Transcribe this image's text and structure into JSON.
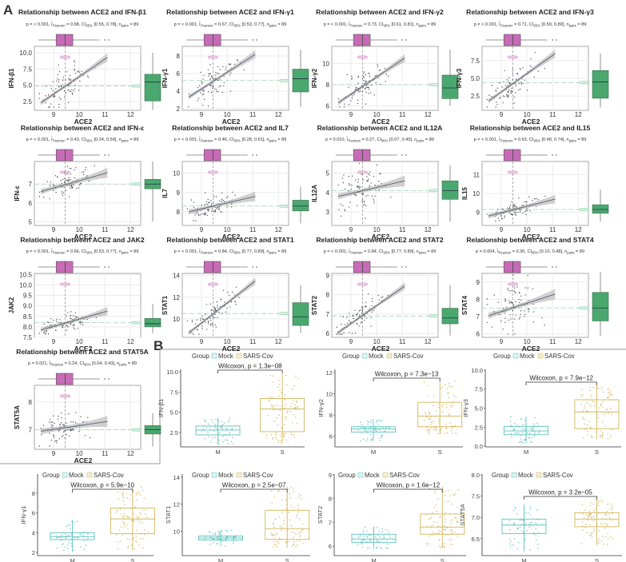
{
  "panel_labels": {
    "a": "A",
    "b": "B"
  },
  "stats_labels": {
    "pearson": "Pearson",
    "ci": "95%",
    "pairs": "pairs"
  },
  "legend": {
    "title": "Group",
    "mock": "Mock",
    "sars": "SARS-Cov"
  },
  "colors": {
    "ace2_box": "#c76bb7",
    "gene_box": "#4aa86f",
    "mock": "#5cc3bd",
    "sars": "#d2b55a",
    "fit_line": "#5a6072",
    "ci_band": "#b9b9b9"
  },
  "chart_data": [
    {
      "type": "scatter",
      "title": "Relationship between ACE2 and IFN-β1",
      "xlabel": "ACE2",
      "ylabel": "IFN-β1",
      "p": "< 0.001",
      "r": "0.68",
      "ci": "[0.55, 0.78]",
      "n": "89",
      "r_value": 0.68,
      "xlim": [
        8.25,
        12.4
      ],
      "xticks": [
        "9",
        "10",
        "11",
        "12"
      ],
      "ylim": [
        1.15,
        11
      ],
      "yticks": [
        "2.5",
        "5.0",
        "7.5",
        "10.0"
      ],
      "fit": [
        [
          8.5,
          2.3
        ],
        [
          11.1,
          9.3
        ]
      ],
      "x_box": [
        8.4,
        9.1,
        9.45,
        9.75,
        10.8
      ],
      "y_box": [
        1.2,
        2.6,
        5.5,
        6.7,
        10
      ],
      "y_mean": 4.9
    },
    {
      "type": "scatter",
      "title": "Relationship between ACE2 and IFN-γ1",
      "xlabel": "ACE2",
      "ylabel": "IFN-γ1",
      "p": "< 0.001",
      "r": "0.67",
      "ci": "[0.53, 0.77]",
      "n": "89",
      "r_value": 0.67,
      "xlim": [
        8.25,
        12.4
      ],
      "xticks": [
        "9",
        "10",
        "11",
        "12"
      ],
      "ylim": [
        1.8,
        9.1
      ],
      "yticks": [
        "2",
        "4",
        "6",
        "8"
      ],
      "fit": [
        [
          8.5,
          3.3
        ],
        [
          11.1,
          8.2
        ]
      ],
      "x_box": [
        8.4,
        9.1,
        9.45,
        9.75,
        10.8
      ],
      "y_box": [
        2.2,
        3.9,
        5.4,
        6.5,
        8.7
      ],
      "y_mean": 5.2
    },
    {
      "type": "scatter",
      "title": "Relationship between ACE2 and IFN-γ2",
      "xlabel": "ACE2",
      "ylabel": "IFN-γ2",
      "p": "< 0.001",
      "r": "0.73",
      "ci": "[0.61, 0.81]",
      "n": "89",
      "r_value": 0.73,
      "xlim": [
        8.25,
        12.4
      ],
      "xticks": [
        "9",
        "10",
        "11",
        "12"
      ],
      "ylim": [
        5.6,
        11.6
      ],
      "yticks": [
        "6",
        "8",
        "10"
      ],
      "fit": [
        [
          8.5,
          6.3
        ],
        [
          11.1,
          10.5
        ]
      ],
      "x_box": [
        8.4,
        9.1,
        9.45,
        9.75,
        10.8
      ],
      "y_box": [
        6,
        6.7,
        7.7,
        8.9,
        11.3
      ],
      "y_mean": 8
    },
    {
      "type": "scatter",
      "title": "Relationship between ACE2 and IFN-γ3",
      "xlabel": "ACE2",
      "ylabel": "IFN-γ3",
      "p": "< 0.001",
      "r": "0.71",
      "ci": "[0.59, 0.80]",
      "n": "89",
      "r_value": 0.71,
      "xlim": [
        8.25,
        12.4
      ],
      "xticks": [
        "9",
        "10",
        "11",
        "12"
      ],
      "ylim": [
        0.5,
        9.5
      ],
      "yticks": [
        "2.5",
        "5.0",
        "7.5"
      ],
      "fit": [
        [
          8.5,
          1.8
        ],
        [
          11.1,
          8.5
        ]
      ],
      "x_box": [
        8.4,
        9.1,
        9.45,
        9.75,
        10.8
      ],
      "y_box": [
        0.9,
        2.2,
        4.5,
        6.1,
        8.5
      ],
      "y_mean": 4.4
    },
    {
      "type": "scatter",
      "title": "Relationship between ACE2 and IFN-ε",
      "xlabel": "ACE2",
      "ylabel": "IFN-ε",
      "p": "< 0.001",
      "r": "0.43",
      "ci": "[0.24, 0.59]",
      "n": "89",
      "r_value": 0.43,
      "xlim": [
        8.25,
        12.4
      ],
      "xticks": [
        "9",
        "10",
        "11",
        "12"
      ],
      "ylim": [
        4.8,
        8.2
      ],
      "yticks": [
        "5",
        "6",
        "7"
      ],
      "fit": [
        [
          8.5,
          6.6
        ],
        [
          11.1,
          7.6
        ]
      ],
      "x_box": [
        8.4,
        9.1,
        9.45,
        9.75,
        10.8
      ],
      "y_box": [
        5,
        6.75,
        7,
        7.25,
        8.2
      ],
      "y_mean": 7
    },
    {
      "type": "scatter",
      "title": "Relationship between ACE2 and IL7",
      "xlabel": "ACE2",
      "ylabel": "IL7",
      "p": "< 0.001",
      "r": "0.46",
      "ci": "[0.28, 0.61]",
      "n": "89",
      "r_value": 0.46,
      "xlim": [
        8.25,
        12.4
      ],
      "xticks": [
        "9",
        "10",
        "11",
        "12"
      ],
      "ylim": [
        7.3,
        10.6
      ],
      "yticks": [
        "8",
        "9",
        "10"
      ],
      "fit": [
        [
          8.5,
          8.0
        ],
        [
          11.1,
          8.8
        ]
      ],
      "x_box": [
        8.4,
        9.1,
        9.45,
        9.75,
        10.8
      ],
      "y_box": [
        7.4,
        8.05,
        8.3,
        8.6,
        9.3
      ],
      "y_mean": 8.3
    },
    {
      "type": "scatter",
      "title": "Relationship between ACE2 and IL12A",
      "xlabel": "ACE2",
      "ylabel": "IL12A",
      "p": "0.010",
      "r": "0.27",
      "ci": "[0.07, 0.45]",
      "n": "89",
      "r_value": 0.27,
      "xlim": [
        8.25,
        12.4
      ],
      "xticks": [
        "9",
        "10",
        "11",
        "12"
      ],
      "ylim": [
        2.3,
        5.6
      ],
      "yticks": [
        "3",
        "4",
        "5"
      ],
      "fit": [
        [
          8.5,
          3.8
        ],
        [
          11.1,
          4.6
        ]
      ],
      "x_box": [
        8.4,
        9.1,
        9.45,
        9.75,
        10.8
      ],
      "y_box": [
        2.5,
        3.65,
        4.1,
        4.6,
        5.4
      ],
      "y_mean": 4.1
    },
    {
      "type": "scatter",
      "title": "Relationship between ACE2 and IL15",
      "xlabel": "ACE2",
      "ylabel": "IL15",
      "p": "< 0.001",
      "r": "0.63",
      "ci": "[0.48, 0.74]",
      "n": "89",
      "r_value": 0.63,
      "xlim": [
        8.25,
        12.4
      ],
      "xticks": [
        "9",
        "10",
        "11",
        "12"
      ],
      "ylim": [
        8.3,
        11.7
      ],
      "yticks": [
        "9",
        "10",
        "11"
      ],
      "fit": [
        [
          8.5,
          8.8
        ],
        [
          11.1,
          9.7
        ]
      ],
      "x_box": [
        8.4,
        9.1,
        9.45,
        9.75,
        10.8
      ],
      "y_box": [
        8.5,
        8.95,
        9.15,
        9.4,
        10.2
      ],
      "y_mean": 9.15
    },
    {
      "type": "scatter",
      "title": "Relationship between ACE2 and JAK2",
      "xlabel": "ACE2",
      "ylabel": "JAK2",
      "p": "< 0.001",
      "r": "0.66",
      "ci": "[0.53, 0.77]",
      "n": "89",
      "r_value": 0.66,
      "xlim": [
        8.25,
        12.4
      ],
      "xticks": [
        "9",
        "10",
        "11",
        "12"
      ],
      "ylim": [
        7.5,
        10.55
      ],
      "yticks": [
        "7.5",
        "8.0",
        "8.5",
        "9.0",
        "9.5",
        "10.0",
        "10.5"
      ],
      "fit": [
        [
          8.5,
          7.85
        ],
        [
          11.1,
          8.75
        ]
      ],
      "x_box": [
        8.4,
        9.1,
        9.45,
        9.75,
        10.8
      ],
      "y_box": [
        7.7,
        8.0,
        8.15,
        8.4,
        9.1
      ],
      "y_mean": 8.2
    },
    {
      "type": "scatter",
      "title": "Relationship between ACE2 and STAT1",
      "xlabel": "ACE2",
      "ylabel": "STAT1",
      "p": "< 0.001",
      "r": "0.84",
      "ci": "[0.77, 0.89]",
      "n": "89",
      "r_value": 0.84,
      "xlim": [
        8.25,
        12.4
      ],
      "xticks": [
        "9",
        "10",
        "11",
        "12"
      ],
      "ylim": [
        8.3,
        14.2
      ],
      "yticks": [
        "10",
        "12",
        "14"
      ],
      "fit": [
        [
          8.5,
          8.7
        ],
        [
          11.1,
          13.5
        ]
      ],
      "x_box": [
        8.4,
        9.1,
        9.45,
        9.75,
        10.8
      ],
      "y_box": [
        8.7,
        9.4,
        10.2,
        11.5,
        13.1
      ],
      "y_mean": 10.5
    },
    {
      "type": "scatter",
      "title": "Relationship between ACE2 and STAT2",
      "xlabel": "ACE2",
      "ylabel": "STAT2",
      "p": "< 0.001",
      "r": "0.84",
      "ci": "[0.77, 0.89]",
      "n": "89",
      "r_value": 0.84,
      "xlim": [
        8.25,
        12.4
      ],
      "xticks": [
        "9",
        "10",
        "11",
        "12"
      ],
      "ylim": [
        5.8,
        9.1
      ],
      "yticks": [
        "6",
        "7",
        "8",
        "9"
      ],
      "fit": [
        [
          8.5,
          6.05
        ],
        [
          11.1,
          8.45
        ]
      ],
      "x_box": [
        8.4,
        9.1,
        9.45,
        9.75,
        10.8
      ],
      "y_box": [
        5.9,
        6.5,
        6.8,
        7.3,
        8.5
      ],
      "y_mean": 6.9
    },
    {
      "type": "scatter",
      "title": "Relationship between ACE2 and STAT4",
      "xlabel": "ACE2",
      "ylabel": "STAT4",
      "p": "0.004",
      "r": "0.30",
      "ci": "[0.10, 0.48]",
      "n": "89",
      "r_value": 0.3,
      "xlim": [
        8.25,
        12.4
      ],
      "xticks": [
        "9",
        "10",
        "11",
        "12"
      ],
      "ylim": [
        5.8,
        9.5
      ],
      "yticks": [
        "6",
        "7",
        "8",
        "9"
      ],
      "fit": [
        [
          8.5,
          7.05
        ],
        [
          11.1,
          8.3
        ]
      ],
      "x_box": [
        8.4,
        9.1,
        9.45,
        9.75,
        10.8
      ],
      "y_box": [
        5.9,
        6.75,
        7.5,
        8.4,
        9.6
      ],
      "y_mean": 7.5
    },
    {
      "type": "scatter",
      "title": "Relationship between ACE2 and STAT5A",
      "xlabel": "ACE2",
      "ylabel": "STAT5A",
      "p": "0.021",
      "r": "0.24",
      "ci": "[0.04, 0.43]",
      "n": "89",
      "r_value": 0.24,
      "xlim": [
        8.25,
        12.4
      ],
      "xticks": [
        "9",
        "10",
        "11",
        "12"
      ],
      "ylim": [
        6.3,
        8.6
      ],
      "yticks": [
        "7",
        "8"
      ],
      "fit": [
        [
          8.5,
          6.95
        ],
        [
          11.1,
          7.3
        ]
      ],
      "x_box": [
        8.4,
        9.1,
        9.45,
        9.75,
        10.8
      ],
      "y_box": [
        6.4,
        6.85,
        7.0,
        7.15,
        7.6
      ],
      "y_mean": 7.0
    },
    {
      "type": "box",
      "ylabel": "IFN-β1",
      "wilcoxon": "Wilcoxon, p = 1.3e−08",
      "categories": [
        "M",
        "S"
      ],
      "ylim": [
        0.72,
        10.3
      ],
      "yticks": [
        "2.5",
        "5.0",
        "7.5",
        "10.0"
      ],
      "groups": [
        {
          "name": "Mock",
          "stats": [
            1.0,
            2.2,
            2.8,
            3.3,
            4.3
          ]
        },
        {
          "name": "SARS-Cov",
          "stats": [
            1.2,
            2.6,
            5.4,
            6.7,
            9.8
          ]
        }
      ]
    },
    {
      "type": "box",
      "ylabel": "IFN-γ2",
      "wilcoxon": "Wilcoxon, p = 7.3e−13",
      "categories": [
        "M",
        "S"
      ],
      "ylim": [
        5.0,
        12.3
      ],
      "yticks": [
        "6",
        "8",
        "10",
        "12"
      ],
      "groups": [
        {
          "name": "Mock",
          "stats": [
            5.5,
            6.4,
            6.7,
            6.9,
            7.6
          ]
        },
        {
          "name": "SARS-Cov",
          "stats": [
            6.2,
            6.9,
            7.9,
            9.2,
            11.2
          ]
        }
      ]
    },
    {
      "type": "box",
      "ylabel": "IFN-γ3",
      "wilcoxon": "Wilcoxon, p = 7.9e−12",
      "categories": [
        "M",
        "S"
      ],
      "ylim": [
        -0.1,
        10.1
      ],
      "yticks": [
        "0.0",
        "2.5",
        "5.0",
        "7.5",
        "10.0"
      ],
      "groups": [
        {
          "name": "Mock",
          "stats": [
            0.4,
            1.5,
            2.0,
            2.6,
            3.9
          ]
        },
        {
          "name": "SARS-Cov",
          "stats": [
            0.9,
            2.3,
            4.5,
            6.1,
            8.0
          ]
        }
      ]
    },
    {
      "type": "box",
      "ylabel": "IFN-γ1",
      "wilcoxon": "Wilcoxon, p = 5.9e−10",
      "categories": [
        "M",
        "S"
      ],
      "ylim": [
        1.68,
        9.95
      ],
      "yticks": [
        "2",
        "4",
        "6",
        "8"
      ],
      "groups": [
        {
          "name": "Mock",
          "stats": [
            2.1,
            3.3,
            3.6,
            4.0,
            5.3
          ]
        },
        {
          "name": "SARS-Cov",
          "stats": [
            2.2,
            3.9,
            5.4,
            6.5,
            8.7
          ]
        }
      ]
    },
    {
      "type": "box",
      "ylabel": "STAT1",
      "wilcoxon": "Wilcoxon, p = 2.5e−07",
      "categories": [
        "M",
        "S"
      ],
      "ylim": [
        8.2,
        14.23
      ],
      "yticks": [
        "10",
        "12",
        "14"
      ],
      "groups": [
        {
          "name": "Mock",
          "stats": [
            8.9,
            9.35,
            9.5,
            9.65,
            10.1
          ]
        },
        {
          "name": "SARS-Cov",
          "stats": [
            8.8,
            9.4,
            10.2,
            11.55,
            13.3
          ]
        }
      ]
    },
    {
      "type": "box",
      "ylabel": "STAT2",
      "wilcoxon": "Wilcoxon, p = 1.6e−12",
      "categories": [
        "M",
        "S"
      ],
      "ylim": [
        5.6,
        9.03
      ],
      "yticks": [
        "6",
        "7",
        "8",
        "9"
      ],
      "groups": [
        {
          "name": "Mock",
          "stats": [
            5.9,
            6.15,
            6.3,
            6.5,
            6.8
          ]
        },
        {
          "name": "SARS-Cov",
          "stats": [
            5.9,
            6.5,
            6.8,
            7.35,
            8.5
          ]
        }
      ]
    },
    {
      "type": "box",
      "ylabel": "STAT5A",
      "wilcoxon": "Wilcoxon, p = 3.2e−05",
      "categories": [
        "M",
        "S"
      ],
      "ylim": [
        6.1,
        8.02
      ],
      "yticks": [
        "6.5",
        "7.0",
        "7.5",
        "8.0"
      ],
      "groups": [
        {
          "name": "Mock",
          "stats": [
            6.2,
            6.62,
            6.82,
            6.96,
            7.3
          ]
        },
        {
          "name": "SARS-Cov",
          "stats": [
            6.35,
            6.78,
            6.96,
            7.11,
            7.45
          ]
        }
      ]
    }
  ]
}
